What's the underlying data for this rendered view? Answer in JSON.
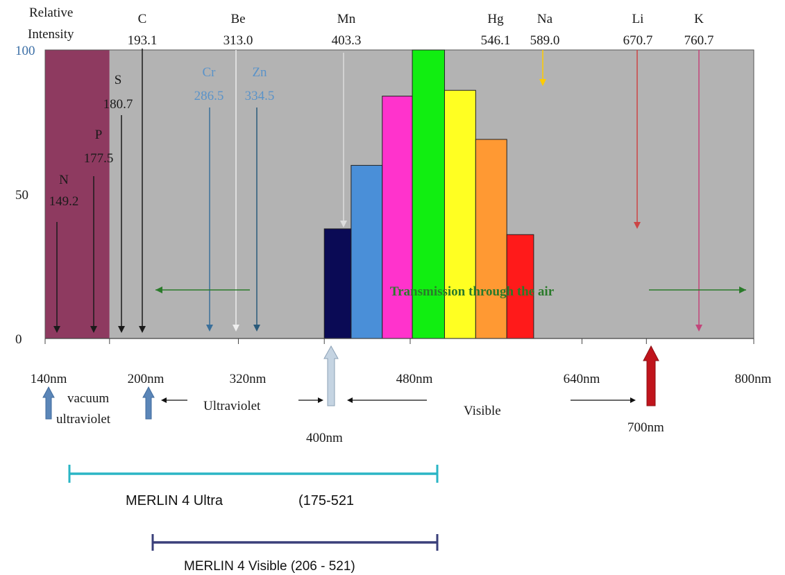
{
  "chart_data": {
    "type": "bar",
    "ylabel": "Relative Intensity",
    "xlim": [
      140,
      800
    ],
    "ylim": [
      0,
      100
    ],
    "y_ticks": [
      "0",
      "50",
      "100"
    ],
    "x_ticks": [
      {
        "value": 140,
        "label": "140nm"
      },
      {
        "value": 200,
        "label": "200nm"
      },
      {
        "value": 320,
        "label": "320nm"
      },
      {
        "value": 480,
        "label": "480nm"
      },
      {
        "value": 640,
        "label": "640nm"
      },
      {
        "value": 800,
        "label": "800nm"
      }
    ],
    "regions": [
      {
        "from": 140,
        "to": 200,
        "color": "#8e3a60"
      },
      {
        "from": 200,
        "to": 800,
        "color": "#b3b3b3"
      }
    ],
    "bars": [
      {
        "from": 400,
        "to": 425,
        "value": 38,
        "color": "#0a0a55"
      },
      {
        "from": 425,
        "to": 454,
        "value": 60,
        "color": "#4a8fd8"
      },
      {
        "from": 454,
        "to": 482,
        "value": 84,
        "color": "#ff33cc"
      },
      {
        "from": 482,
        "to": 512,
        "value": 100,
        "color": "#11ee11"
      },
      {
        "from": 512,
        "to": 541,
        "value": 86,
        "color": "#ffff22"
      },
      {
        "from": 541,
        "to": 570,
        "value": 69,
        "color": "#ff9933"
      },
      {
        "from": 570,
        "to": 595,
        "value": 36,
        "color": "#ff1a1a"
      }
    ],
    "element_lines": [
      {
        "symbol": "N",
        "wavelength": "149.2",
        "x": 146,
        "top": 40,
        "color": "#1a1a1a"
      },
      {
        "symbol": "P",
        "wavelength": "177.5",
        "x": 169,
        "top": 60,
        "color": "#1a1a1a"
      },
      {
        "symbol": "S",
        "wavelength": "180.7",
        "x": 186,
        "top": 83,
        "color": "#1a1a1a"
      },
      {
        "symbol": "C",
        "wavelength": "193.1",
        "x": 198,
        "top": 100,
        "color": "#1a1a1a"
      },
      {
        "symbol": "Cr",
        "wavelength": "286.5",
        "x": 237,
        "top": 90,
        "color": "#3a6f9a"
      },
      {
        "symbol": "Be",
        "wavelength": "313.0",
        "x": 256,
        "top": 100,
        "color": "#eeeeee"
      },
      {
        "symbol": "Zn",
        "wavelength": "334.5",
        "x": 266,
        "top": 90,
        "color": "#2a5a7a"
      },
      {
        "symbol": "Mn",
        "wavelength": "403.3",
        "x": 414,
        "top": 100,
        "color": "#dddddd"
      },
      {
        "symbol": "Hg",
        "wavelength": "546.1",
        "x": 497,
        "top": 100,
        "color": "#1a1a1a"
      },
      {
        "symbol": "Na",
        "wavelength": "589.0",
        "x": 527,
        "top": 100,
        "color": "#ffcc00"
      },
      {
        "symbol": "Li",
        "wavelength": "670.7",
        "x": 585,
        "top": 100,
        "color": "#cc4444"
      },
      {
        "symbol": "K",
        "wavelength": "760.7",
        "x": 620,
        "top": 100,
        "color": "#c2457a"
      }
    ],
    "annotation": "Transmission through the air",
    "annotation_color": "#2a7a2a"
  },
  "axis_labels": {
    "ylabel_line1": "Relative",
    "ylabel_line2": "Intensity"
  },
  "region_labels": {
    "vacuum_line1": "vacuum",
    "vacuum_line2": "ultraviolet",
    "ultraviolet": "Ultraviolet",
    "visible": "Visible",
    "nm400": "400nm",
    "nm700": "700nm"
  },
  "ranges": [
    {
      "label": "MERLIN 4 Ultra",
      "extra": "(175-521",
      "color": "#2ab5c5"
    },
    {
      "label": "MERLIN 4 Visible (206 - 521)",
      "extra": "",
      "color": "#3a3f7a"
    }
  ]
}
